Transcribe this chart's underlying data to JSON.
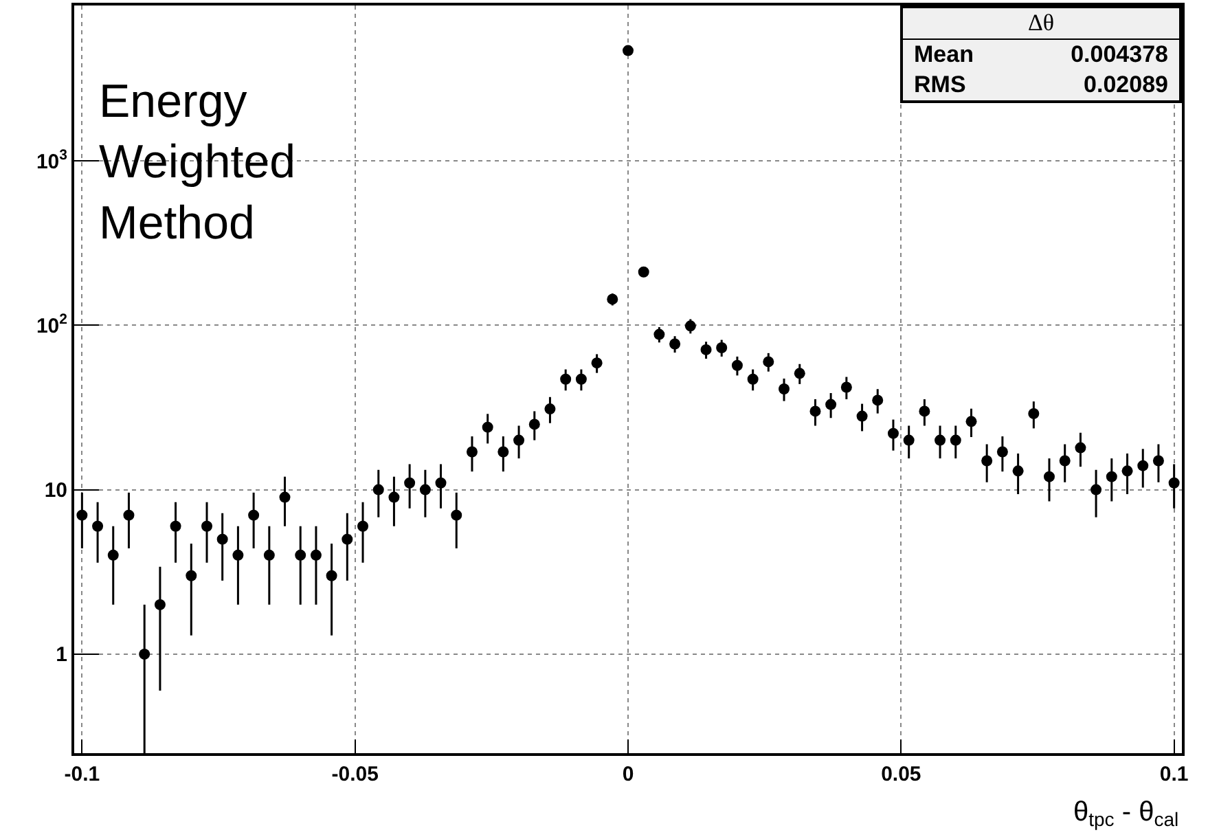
{
  "chart_data": {
    "type": "scatter",
    "xlabel": "θ$_{tpc}$ - θ$_{cal}$",
    "x": [
      -0.1,
      -0.09714,
      -0.09429,
      -0.09143,
      -0.08857,
      -0.08571,
      -0.08286,
      -0.08,
      -0.07714,
      -0.07429,
      -0.07143,
      -0.06857,
      -0.06571,
      -0.06286,
      -0.06,
      -0.05714,
      -0.05429,
      -0.05143,
      -0.04857,
      -0.04571,
      -0.04286,
      -0.04,
      -0.03714,
      -0.03429,
      -0.03143,
      -0.02857,
      -0.02571,
      -0.02286,
      -0.02,
      -0.01714,
      -0.01429,
      -0.01143,
      -0.00857,
      -0.00571,
      -0.00286,
      0,
      0.00286,
      0.00571,
      0.00857,
      0.01143,
      0.01429,
      0.01714,
      0.02,
      0.02286,
      0.02571,
      0.02857,
      0.03143,
      0.03429,
      0.03714,
      0.04,
      0.04286,
      0.04571,
      0.04857,
      0.05143,
      0.05429,
      0.05714,
      0.06,
      0.06286,
      0.06571,
      0.06857,
      0.07143,
      0.07429,
      0.07714,
      0.08,
      0.08286,
      0.08571,
      0.08857,
      0.09143,
      0.09429,
      0.09714,
      0.1
    ],
    "series": [
      {
        "color": "#000000",
        "values": [
          7,
          6,
          4,
          7,
          1,
          2,
          6,
          3,
          6,
          5,
          4,
          7,
          4,
          9,
          4,
          4,
          3,
          5,
          6,
          10,
          9,
          11,
          10,
          11,
          7,
          17,
          24,
          17,
          20,
          25,
          31,
          47,
          47,
          59,
          144,
          4680,
          211,
          88,
          77,
          99,
          71,
          73,
          57,
          47,
          60,
          41,
          51,
          30,
          33,
          42,
          28,
          35,
          22,
          20,
          30,
          20,
          20,
          26,
          15,
          17,
          13,
          29,
          12,
          15,
          18,
          10,
          12,
          13,
          14,
          15,
          11
        ],
        "errors": [
          2.6,
          2.4,
          2,
          2.6,
          [
            0.25,
            2
          ],
          1.4,
          2.4,
          1.7,
          2.4,
          2.2,
          2,
          2.6,
          2,
          3,
          2,
          2,
          1.7,
          2.2,
          2.4,
          3.2,
          3,
          3.3,
          3.2,
          3.3,
          2.6,
          4.1,
          4.9,
          4.1,
          4.5,
          5,
          5.6,
          6.9,
          6.9,
          7.7,
          12,
          68,
          14.5,
          9.4,
          8.8,
          9.9,
          8.4,
          8.5,
          7.5,
          6.9,
          7.7,
          6.4,
          7.1,
          5.5,
          5.7,
          6.5,
          5.3,
          5.9,
          4.7,
          4.5,
          5.5,
          4.5,
          4.5,
          5.1,
          3.9,
          4.1,
          3.6,
          5.4,
          3.5,
          3.9,
          4.2,
          3.2,
          3.5,
          3.6,
          3.7,
          3.9,
          3.3
        ]
      }
    ],
    "xlim": [
      -0.10143,
      0.10143
    ],
    "xticks": [
      -0.1,
      -0.05,
      0,
      0.05,
      0.1
    ],
    "ylim": [
      0.25,
      8800
    ],
    "yticks": [
      1,
      10,
      {
        "value": 100,
        "label": "10$^{2}$"
      },
      {
        "value": 1000,
        "label": "10$^{3}$"
      }
    ],
    "log": "y",
    "grid": true,
    "marker": "circle",
    "annotations": [
      "Energy\nWeighted\nMethod",
      "Δθ",
      "Mean",
      "0.004378",
      "RMS",
      "0.02089"
    ]
  }
}
